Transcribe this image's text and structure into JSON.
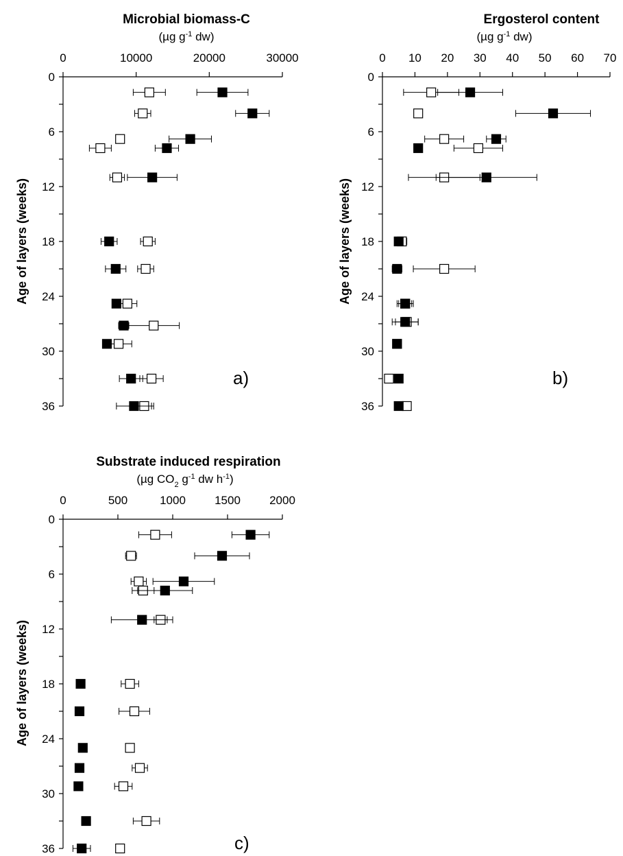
{
  "figure_colors": {
    "filled": "#000000",
    "open": "#ffffff",
    "stroke": "#000000"
  },
  "chart_data": [
    {
      "type": "scatter",
      "panel_label": "a)",
      "title": "Microbial biomass-C",
      "unit": {
        "pre": "(µg g",
        "sup": "-1",
        "post": " dw)"
      },
      "ylabel": "Age of layers (weeks)",
      "x_ticks": [
        0,
        10000,
        20000,
        30000
      ],
      "x_tick_labels": [
        "0",
        "10000",
        "20000",
        "30000"
      ],
      "xlim": [
        0,
        30000
      ],
      "y_ticks": [
        0,
        6,
        12,
        18,
        24,
        30,
        36
      ],
      "y_tick_labels": [
        "0",
        "6",
        "12",
        "18",
        "24",
        "30",
        "36"
      ],
      "ylim": [
        0,
        36
      ],
      "y_inverted": true,
      "grid": false,
      "series": [
        {
          "marker": "filled-square",
          "points": [
            {
              "x": 21800,
              "y": 1.7,
              "err": 3500
            },
            {
              "x": 25900,
              "y": 4.0,
              "err": 2300
            },
            {
              "x": 17400,
              "y": 6.8,
              "err": 2900
            },
            {
              "x": 14200,
              "y": 7.8,
              "err": 1600
            },
            {
              "x": 12200,
              "y": 11.0,
              "err": 3400
            },
            {
              "x": 6300,
              "y": 18.0,
              "err": 1100
            },
            {
              "x": 7200,
              "y": 21.0,
              "err": 1400
            },
            {
              "x": 7300,
              "y": 24.8,
              "err": 500
            },
            {
              "x": 8300,
              "y": 27.2,
              "err": 700
            },
            {
              "x": 6000,
              "y": 29.2,
              "err": 300
            },
            {
              "x": 9300,
              "y": 33.0,
              "err": 1600
            },
            {
              "x": 9700,
              "y": 36.0,
              "err": 2400
            }
          ]
        },
        {
          "marker": "open-square",
          "points": [
            {
              "x": 11800,
              "y": 1.7,
              "err": 2200
            },
            {
              "x": 10900,
              "y": 4.0,
              "err": 1100
            },
            {
              "x": 7800,
              "y": 6.8,
              "err": 0
            },
            {
              "x": 5100,
              "y": 7.8,
              "err": 1500
            },
            {
              "x": 7400,
              "y": 11.0,
              "err": 1000
            },
            {
              "x": 11600,
              "y": 18.0,
              "err": 1000
            },
            {
              "x": 11300,
              "y": 21.0,
              "err": 1100
            },
            {
              "x": 8800,
              "y": 24.8,
              "err": 1300
            },
            {
              "x": 12400,
              "y": 27.2,
              "err": 3500
            },
            {
              "x": 7600,
              "y": 29.2,
              "err": 1800
            },
            {
              "x": 12100,
              "y": 33.0,
              "err": 1600
            },
            {
              "x": 11100,
              "y": 36.0,
              "err": 1300
            }
          ]
        }
      ]
    },
    {
      "type": "scatter",
      "panel_label": "b)",
      "title": "Ergosterol content",
      "unit": {
        "pre": "(µg g",
        "sup": "-1",
        "post": " dw)"
      },
      "ylabel": "Age of layers (weeks)",
      "x_ticks": [
        0,
        10,
        20,
        30,
        40,
        50,
        60,
        70
      ],
      "x_tick_labels": [
        "0",
        "10",
        "20",
        "30",
        "40",
        "50",
        "60",
        "70"
      ],
      "xlim": [
        0,
        70
      ],
      "y_ticks": [
        0,
        6,
        12,
        18,
        24,
        30,
        36
      ],
      "y_tick_labels": [
        "0",
        "6",
        "12",
        "18",
        "24",
        "30",
        "36"
      ],
      "ylim": [
        0,
        36
      ],
      "y_inverted": true,
      "grid": false,
      "series": [
        {
          "marker": "filled-square",
          "points": [
            {
              "x": 27,
              "y": 1.7,
              "err": 10
            },
            {
              "x": 52.5,
              "y": 4.0,
              "err": 11.5
            },
            {
              "x": 35,
              "y": 6.8,
              "err": 3
            },
            {
              "x": 11,
              "y": 7.8,
              "err": 0.5
            },
            {
              "x": 32,
              "y": 11.0,
              "err": 15.5
            },
            {
              "x": 5,
              "y": 18.0,
              "err": 0.7
            },
            {
              "x": 4.5,
              "y": 21.0,
              "err": 1.5
            },
            {
              "x": 7,
              "y": 24.8,
              "err": 2
            },
            {
              "x": 7,
              "y": 26.8,
              "err": 4
            },
            {
              "x": 4.5,
              "y": 29.2,
              "err": 0.5
            },
            {
              "x": 5,
              "y": 33.0,
              "err": 0
            },
            {
              "x": 5,
              "y": 36.0,
              "err": 0
            }
          ]
        },
        {
          "marker": "open-square",
          "points": [
            {
              "x": 15,
              "y": 1.7,
              "err": 8.5
            },
            {
              "x": 11,
              "y": 4.0,
              "err": 0
            },
            {
              "x": 19,
              "y": 6.8,
              "err": 6
            },
            {
              "x": 29.5,
              "y": 7.8,
              "err": 7.5
            },
            {
              "x": 19,
              "y": 11.0,
              "err": 11
            },
            {
              "x": 6,
              "y": 18.0,
              "err": 1.5
            },
            {
              "x": 19,
              "y": 21.0,
              "err": 9.5
            },
            {
              "x": 7,
              "y": 24.8,
              "err": 2.5
            },
            {
              "x": 7.5,
              "y": 26.8,
              "err": 3.5
            },
            {
              "x": 4.5,
              "y": 29.2,
              "err": 1
            },
            {
              "x": 2,
              "y": 33.0,
              "err": 0
            },
            {
              "x": 7.5,
              "y": 36.0,
              "err": 1
            }
          ]
        }
      ]
    },
    {
      "type": "scatter",
      "panel_label": "c)",
      "title": "Substrate induced respiration",
      "unit": {
        "pre": "(µg CO",
        "sub": "2",
        "mid": " g",
        "sup": "-1",
        "post": " dw h",
        "sup2": "-1",
        "end": ")"
      },
      "ylabel": "Age of layers (weeks)",
      "x_ticks": [
        0,
        500,
        1000,
        1500,
        2000
      ],
      "x_tick_labels": [
        "0",
        "500",
        "1000",
        "1500",
        "2000"
      ],
      "xlim": [
        0,
        2000
      ],
      "y_ticks": [
        0,
        6,
        12,
        18,
        24,
        30,
        36
      ],
      "y_tick_labels": [
        "0",
        "6",
        "12",
        "18",
        "24",
        "30",
        "36"
      ],
      "ylim": [
        0,
        36
      ],
      "y_inverted": true,
      "grid": false,
      "series": [
        {
          "marker": "filled-square",
          "points": [
            {
              "x": 1710,
              "y": 1.7,
              "err": 170
            },
            {
              "x": 1450,
              "y": 4.0,
              "err": 250
            },
            {
              "x": 1100,
              "y": 6.8,
              "err": 280
            },
            {
              "x": 930,
              "y": 7.8,
              "err": 250
            },
            {
              "x": 720,
              "y": 11.0,
              "err": 280
            },
            {
              "x": 160,
              "y": 18.0,
              "err": 0
            },
            {
              "x": 150,
              "y": 21.0,
              "err": 0
            },
            {
              "x": 180,
              "y": 25.0,
              "err": 0
            },
            {
              "x": 150,
              "y": 27.2,
              "err": 0
            },
            {
              "x": 140,
              "y": 29.2,
              "err": 30
            },
            {
              "x": 210,
              "y": 33.0,
              "err": 0
            },
            {
              "x": 170,
              "y": 36.0,
              "err": 80
            }
          ]
        },
        {
          "marker": "open-square",
          "points": [
            {
              "x": 840,
              "y": 1.7,
              "err": 150
            },
            {
              "x": 620,
              "y": 4.0,
              "err": 50
            },
            {
              "x": 690,
              "y": 6.8,
              "err": 70
            },
            {
              "x": 730,
              "y": 7.8,
              "err": 100
            },
            {
              "x": 890,
              "y": 11.0,
              "err": 60
            },
            {
              "x": 610,
              "y": 18.0,
              "err": 80
            },
            {
              "x": 650,
              "y": 21.0,
              "err": 140
            },
            {
              "x": 610,
              "y": 25.0,
              "err": 0
            },
            {
              "x": 700,
              "y": 27.2,
              "err": 70
            },
            {
              "x": 550,
              "y": 29.2,
              "err": 80
            },
            {
              "x": 760,
              "y": 33.0,
              "err": 120
            },
            {
              "x": 520,
              "y": 36.0,
              "err": 0
            }
          ]
        }
      ]
    }
  ]
}
